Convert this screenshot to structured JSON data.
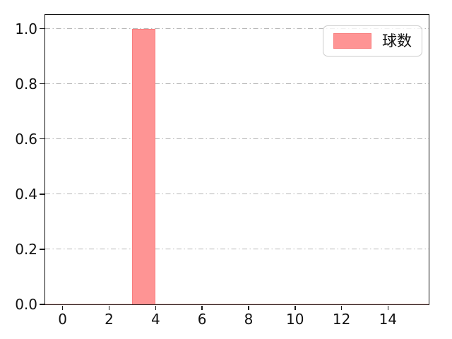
{
  "figure": {
    "background": "#ffffff",
    "spine_color": "#111111",
    "tick_color": "#1a1a1a"
  },
  "chart_data": {
    "type": "bar",
    "title": "",
    "xlabel": "",
    "ylabel": "",
    "xlim": [
      -0.75,
      15.75
    ],
    "ylim": [
      0,
      1.05
    ],
    "xticks": [
      0,
      2,
      4,
      6,
      8,
      10,
      12,
      14
    ],
    "xtick_labels": [
      "0",
      "2",
      "4",
      "6",
      "8",
      "10",
      "12",
      "14"
    ],
    "yticks": [
      0.0,
      0.2,
      0.4,
      0.6,
      0.8,
      1.0
    ],
    "ytick_labels": [
      "0.0",
      "0.2",
      "0.4",
      "0.6",
      "0.8",
      "1.0"
    ],
    "grid": {
      "axis": "y",
      "style": "dash-dot",
      "color": "#b5b5b5"
    },
    "series": [
      {
        "name": "球数",
        "color": "#fe9494",
        "edge_color": "#f87f7f",
        "bars": [
          {
            "x_start": 3,
            "x_end": 4,
            "value": 1.0
          }
        ]
      }
    ],
    "baseline": {
      "value": 0,
      "color": "rgba(250,125,115,0.5)"
    },
    "legend": {
      "position": "upper-right",
      "entries": [
        {
          "label": "球数",
          "color": "#fe9494",
          "edge_color": "#f87f7f"
        }
      ]
    }
  }
}
